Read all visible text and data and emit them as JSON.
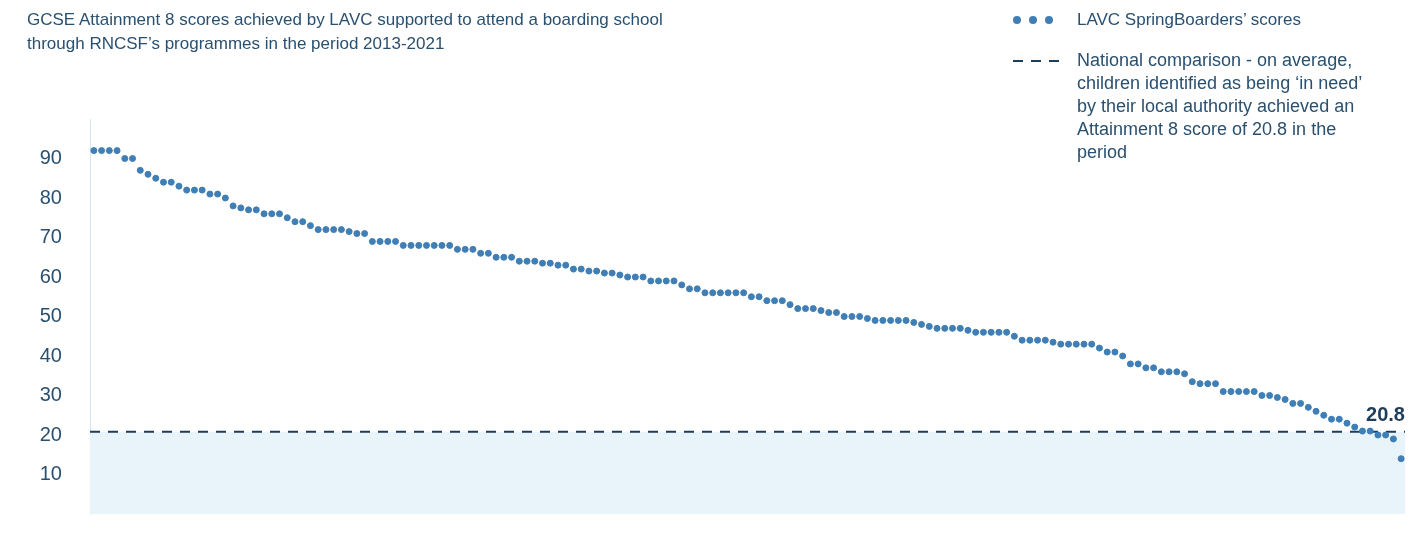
{
  "chart_data": {
    "type": "scatter",
    "title": "GCSE Attainment 8 scores achieved by LAVC supported to attend a boarding school through RNCSF’s programmes in the period 2013-2021",
    "categories": [
      null,
      null,
      null,
      null,
      null,
      null,
      null,
      null,
      null,
      null,
      null,
      null,
      null,
      null,
      null,
      null,
      null,
      null,
      null,
      null,
      null,
      null,
      null,
      null,
      null,
      null,
      null,
      null,
      null,
      null,
      null,
      null,
      null,
      null,
      null,
      null,
      null,
      null,
      null,
      null,
      null,
      null,
      null,
      null,
      null,
      null,
      null,
      null,
      null,
      null,
      null,
      null,
      null,
      null,
      null,
      null,
      null,
      null,
      null,
      null,
      null,
      null,
      null,
      null,
      null,
      null,
      null,
      null,
      null,
      null,
      null,
      null,
      null,
      null,
      null,
      null,
      null,
      null,
      null,
      null,
      null,
      null,
      null,
      null,
      null,
      null,
      null,
      null,
      null,
      null,
      null,
      null,
      null,
      null,
      null,
      null,
      null,
      null,
      null,
      null,
      null,
      null,
      null,
      null,
      null,
      null,
      null,
      null,
      null,
      null,
      null,
      null,
      null,
      null,
      null,
      null,
      null,
      null,
      null,
      null,
      null,
      null,
      null,
      null,
      null,
      null,
      null,
      null,
      null,
      null,
      null,
      null,
      null,
      null,
      null,
      null,
      null,
      null,
      null,
      null,
      null,
      null,
      null,
      null,
      null,
      null,
      null,
      null,
      null,
      null,
      null,
      null,
      null,
      null,
      null,
      null,
      null,
      null,
      null,
      null,
      null,
      null,
      null,
      null,
      null,
      null,
      null,
      null,
      null,
      null
    ],
    "series": [
      {
        "name": "LAVC SpringBoarders’ scores",
        "color": "#3f7fb5",
        "values": [
          92,
          92,
          92,
          92,
          90,
          90,
          87,
          86,
          85,
          84,
          84,
          83,
          82,
          82,
          82,
          81,
          81,
          80,
          78,
          77.5,
          77,
          77,
          76,
          76,
          76,
          75,
          74,
          74,
          73,
          72,
          72,
          72,
          72,
          71.5,
          71,
          71,
          69,
          69,
          69,
          69,
          68,
          68,
          68,
          68,
          68,
          68,
          68,
          67,
          67,
          67,
          66,
          66,
          65,
          65,
          65,
          64,
          64,
          64,
          63.5,
          63.5,
          63,
          63,
          62,
          62,
          61.5,
          61.5,
          61,
          61,
          60.5,
          60,
          60,
          60,
          59,
          59,
          59,
          59,
          58,
          57,
          57,
          56,
          56,
          56,
          56,
          56,
          56,
          55,
          55,
          54,
          54,
          54,
          53,
          52,
          52,
          52,
          51.5,
          51,
          51,
          50,
          50,
          50,
          49.5,
          49,
          49,
          49,
          49,
          49,
          48.5,
          48,
          47.5,
          47,
          47,
          47,
          47,
          46.5,
          46,
          46,
          46,
          46,
          46,
          45,
          44,
          44,
          44,
          44,
          43.5,
          43,
          43,
          43,
          43,
          43,
          42,
          41,
          41,
          40,
          38,
          38,
          37,
          37,
          36,
          36,
          36,
          35.5,
          33.5,
          33,
          33,
          33,
          31,
          31,
          31,
          31,
          31,
          30,
          30,
          29.5,
          29,
          28,
          28,
          27,
          26,
          25,
          24,
          24,
          23,
          22,
          21,
          21,
          20,
          20,
          19,
          14
        ]
      }
    ],
    "ylim": [
      0,
      100
    ],
    "yticks": [
      10,
      20,
      30,
      40,
      50,
      60,
      70,
      80,
      90
    ],
    "tick_labels": "y",
    "grid": false,
    "legend": "top right",
    "marker": "circle",
    "ref_lines": [
      {
        "axis": "y",
        "value": 20.8,
        "label": "National comparison - on average, children identified as being ‘in need’ by their local authority achieved an Attainment 8 score of 20.8 in the period",
        "color": "#1e3d5a",
        "line_style": "dashed"
      }
    ],
    "bands": [
      {
        "axis": "y",
        "from": 0,
        "to": 20.8,
        "color": "#e8f3fa"
      }
    ],
    "annotations": [
      {
        "text": "20.8",
        "y": 20.8
      }
    ]
  }
}
